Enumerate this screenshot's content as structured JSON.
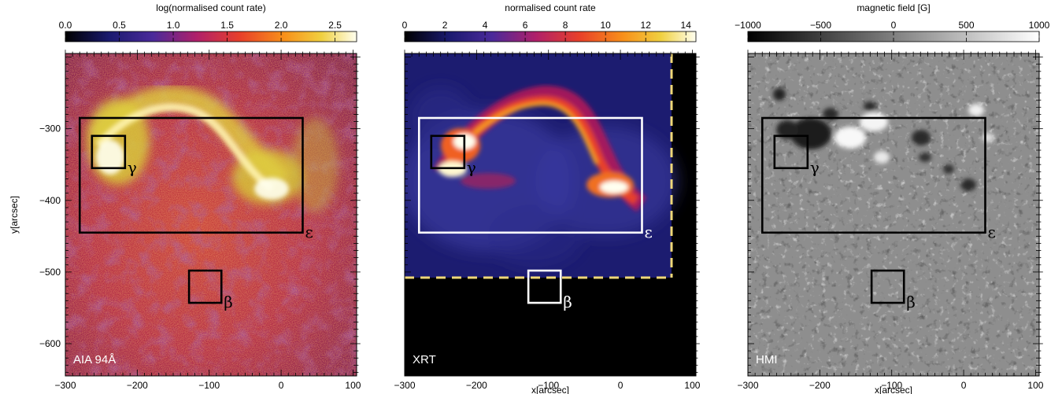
{
  "chart_data": [
    {
      "type": "heatmap",
      "panel_label": "AIA 94Å",
      "colorbar": {
        "title": "log(normalised count rate)",
        "ticks": [
          "0.0",
          "0.5",
          "1.0",
          "1.5",
          "2.0",
          "2.5"
        ],
        "range": [
          0.0,
          2.7
        ],
        "colormap": "heat"
      },
      "xlabel": "",
      "ylabel": "y[arcsec]",
      "xlim": [
        -300,
        105
      ],
      "ylim": [
        -645,
        -195
      ],
      "xticks": [
        -300,
        -200,
        -100,
        0,
        100
      ],
      "yticks": [
        -300,
        -400,
        -500,
        -600
      ],
      "boxes": [
        {
          "label": "ε",
          "x": [
            -280,
            30
          ],
          "y": [
            -285,
            -445
          ],
          "color": "black"
        },
        {
          "label": "γ",
          "x": [
            -263,
            -217
          ],
          "y": [
            -310,
            -355
          ],
          "color": "black"
        },
        {
          "label": "β",
          "x": [
            -128,
            -83
          ],
          "y": [
            -498,
            -543
          ],
          "color": "black"
        }
      ]
    },
    {
      "type": "heatmap",
      "panel_label": "XRT",
      "colorbar": {
        "title": "normalised count rate",
        "ticks": [
          "0",
          "2",
          "4",
          "6",
          "8",
          "10",
          "12",
          "14"
        ],
        "range": [
          0,
          14.5
        ],
        "colormap": "heat"
      },
      "xlabel": "x[arcsec]",
      "ylabel": "",
      "xlim": [
        -300,
        105
      ],
      "ylim": [
        -645,
        -195
      ],
      "xticks": [
        -300,
        -200,
        -100,
        0,
        100
      ],
      "yticks": [],
      "fov_edge": {
        "x": 65,
        "y": -535,
        "style": "dashed",
        "color": "#f0d878"
      },
      "boxes": [
        {
          "label": "ε",
          "x": [
            -280,
            30
          ],
          "y": [
            -285,
            -445
          ],
          "color": "white"
        },
        {
          "label": "γ",
          "x": [
            -263,
            -217
          ],
          "y": [
            -310,
            -355
          ],
          "color": "black"
        },
        {
          "label": "β",
          "x": [
            -128,
            -83
          ],
          "y": [
            -498,
            -543
          ],
          "color": "white"
        }
      ]
    },
    {
      "type": "heatmap",
      "panel_label": "HMI",
      "colorbar": {
        "title": "magnetic field [G]",
        "ticks": [
          "−1000",
          "−500",
          "0",
          "500",
          "1000"
        ],
        "range": [
          -1000,
          1000
        ],
        "colormap": "gray"
      },
      "xlabel": "x[arcsec]",
      "ylabel": "",
      "xlim": [
        -300,
        105
      ],
      "ylim": [
        -645,
        -195
      ],
      "xticks": [
        -300,
        -200,
        -100,
        0,
        100
      ],
      "yticks": [],
      "boxes": [
        {
          "label": "ε",
          "x": [
            -280,
            30
          ],
          "y": [
            -285,
            -445
          ],
          "color": "black"
        },
        {
          "label": "γ",
          "x": [
            -263,
            -217
          ],
          "y": [
            -310,
            -355
          ],
          "color": "black"
        },
        {
          "label": "β",
          "x": [
            -128,
            -83
          ],
          "y": [
            -498,
            -543
          ],
          "color": "black"
        }
      ]
    }
  ],
  "tick_labels": {
    "x": [
      "−300",
      "−200",
      "−100",
      "0",
      "100"
    ],
    "y": [
      "−300",
      "−400",
      "−500",
      "−600"
    ]
  }
}
